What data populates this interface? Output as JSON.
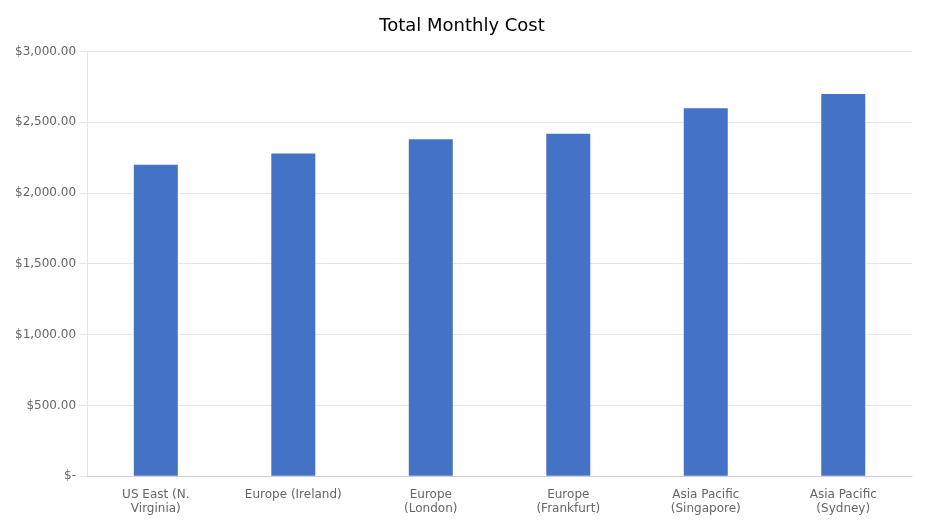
{
  "chart_data": {
    "type": "bar",
    "title": "Total Monthly Cost",
    "categories": [
      "US East (N.\nVirginia)",
      "Europe (Ireland)",
      "Europe\n(London)",
      "Europe\n(Frankfurt)",
      "Asia Pacific\n(Singapore)",
      "Asia Pacific\n(Sydney)"
    ],
    "values": [
      2200,
      2280,
      2380,
      2420,
      2600,
      2700
    ],
    "color": "#4472C4",
    "ylim": [
      0,
      3000
    ],
    "yticks": [
      {
        "value": 0,
        "label": "$-"
      },
      {
        "value": 500,
        "label": "$500.00"
      },
      {
        "value": 1000,
        "label": "$1,000.00"
      },
      {
        "value": 1500,
        "label": "$1,500.00"
      },
      {
        "value": 2000,
        "label": "$2,000.00"
      },
      {
        "value": 2500,
        "label": "$2,500.00"
      },
      {
        "value": 3000,
        "label": "$3,000.00"
      }
    ],
    "grid": true
  }
}
